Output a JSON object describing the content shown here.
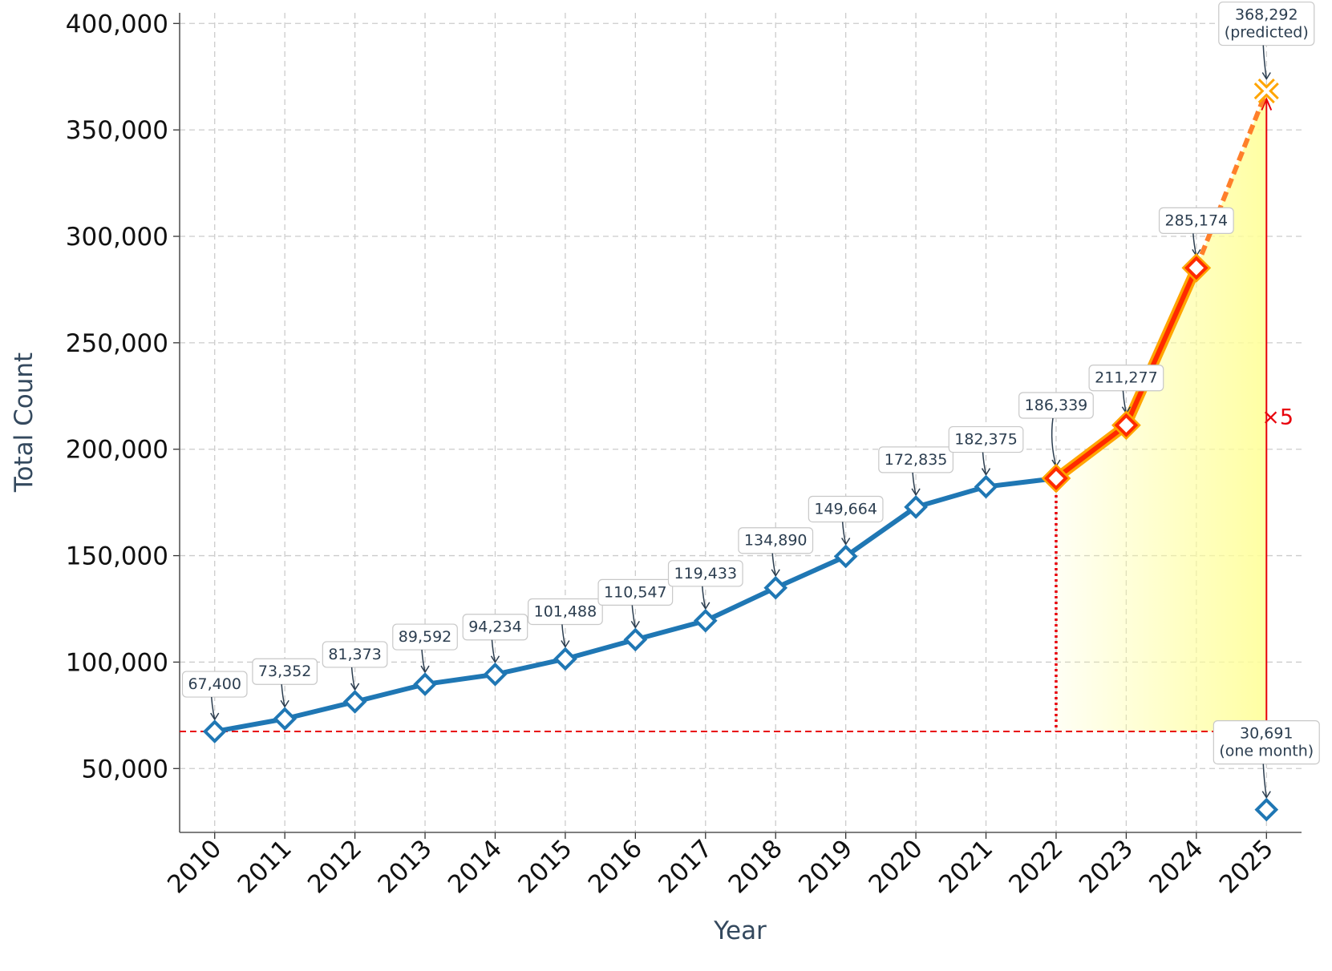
{
  "chart_data": {
    "type": "line",
    "x_label": "Year",
    "y_label": "Total Count",
    "x": [
      2010,
      2011,
      2012,
      2013,
      2014,
      2015,
      2016,
      2017,
      2018,
      2019,
      2020,
      2021,
      2022,
      2023,
      2024,
      2025
    ],
    "xlim": [
      2009.5,
      2025.5
    ],
    "xticks": [
      2010,
      2011,
      2012,
      2013,
      2014,
      2015,
      2016,
      2017,
      2018,
      2019,
      2020,
      2021,
      2022,
      2023,
      2024,
      2025
    ],
    "ylim": [
      20000,
      405000
    ],
    "yticks": [
      {
        "value": 50000,
        "label": "50,000"
      },
      {
        "value": 100000,
        "label": "100,000"
      },
      {
        "value": 150000,
        "label": "150,000"
      },
      {
        "value": 200000,
        "label": "200,000"
      },
      {
        "value": 250000,
        "label": "250,000"
      },
      {
        "value": 300000,
        "label": "300,000"
      },
      {
        "value": 350000,
        "label": "350,000"
      },
      {
        "value": 400000,
        "label": "400,000"
      }
    ],
    "grid": true,
    "series": [
      {
        "color": "#1f77b4",
        "linestyle": "solid",
        "marker": "diamond",
        "values": [
          67400,
          73352,
          81373,
          89592,
          94234,
          101488,
          110547,
          119433,
          134890,
          149664,
          172835,
          182375,
          null,
          null,
          null,
          null
        ],
        "value_labels": [
          "67,400",
          "73,352",
          "81,373",
          "89,592",
          "94,234",
          "101,488",
          "110,547",
          "119,433",
          "134,890",
          "149,664",
          "172,835",
          "182,375",
          null,
          null,
          null,
          null
        ]
      },
      {
        "color": "#ff2a00",
        "glow_color": "#ffa500",
        "linestyle": "solid",
        "marker": "diamond",
        "values": [
          null,
          null,
          null,
          null,
          null,
          null,
          null,
          null,
          null,
          null,
          null,
          null,
          186339,
          211277,
          285174,
          null
        ],
        "value_labels": [
          null,
          null,
          null,
          null,
          null,
          null,
          null,
          null,
          null,
          null,
          null,
          null,
          "186,339",
          "211,277",
          "285,174",
          null
        ]
      },
      {
        "color": "#ff7f2a",
        "linestyle": "dashed",
        "marker": "x",
        "values": [
          null,
          null,
          null,
          null,
          null,
          null,
          null,
          null,
          null,
          null,
          null,
          null,
          null,
          null,
          null,
          368292
        ],
        "value_labels": [
          null,
          null,
          null,
          null,
          null,
          null,
          null,
          null,
          null,
          null,
          null,
          null,
          null,
          null,
          null,
          "368,292\n(predicted)"
        ]
      },
      {
        "color": "#1f77b4",
        "linestyle": "none",
        "marker": "diamond",
        "values": [
          null,
          null,
          null,
          null,
          null,
          null,
          null,
          null,
          null,
          null,
          null,
          null,
          null,
          null,
          null,
          30691
        ],
        "value_labels": [
          null,
          null,
          null,
          null,
          null,
          null,
          null,
          null,
          null,
          null,
          null,
          null,
          null,
          null,
          null,
          "30,691\n(one month)"
        ]
      }
    ],
    "reference_color": "#e8000b",
    "fill_color": "#ffff99",
    "annotation": "×5"
  }
}
